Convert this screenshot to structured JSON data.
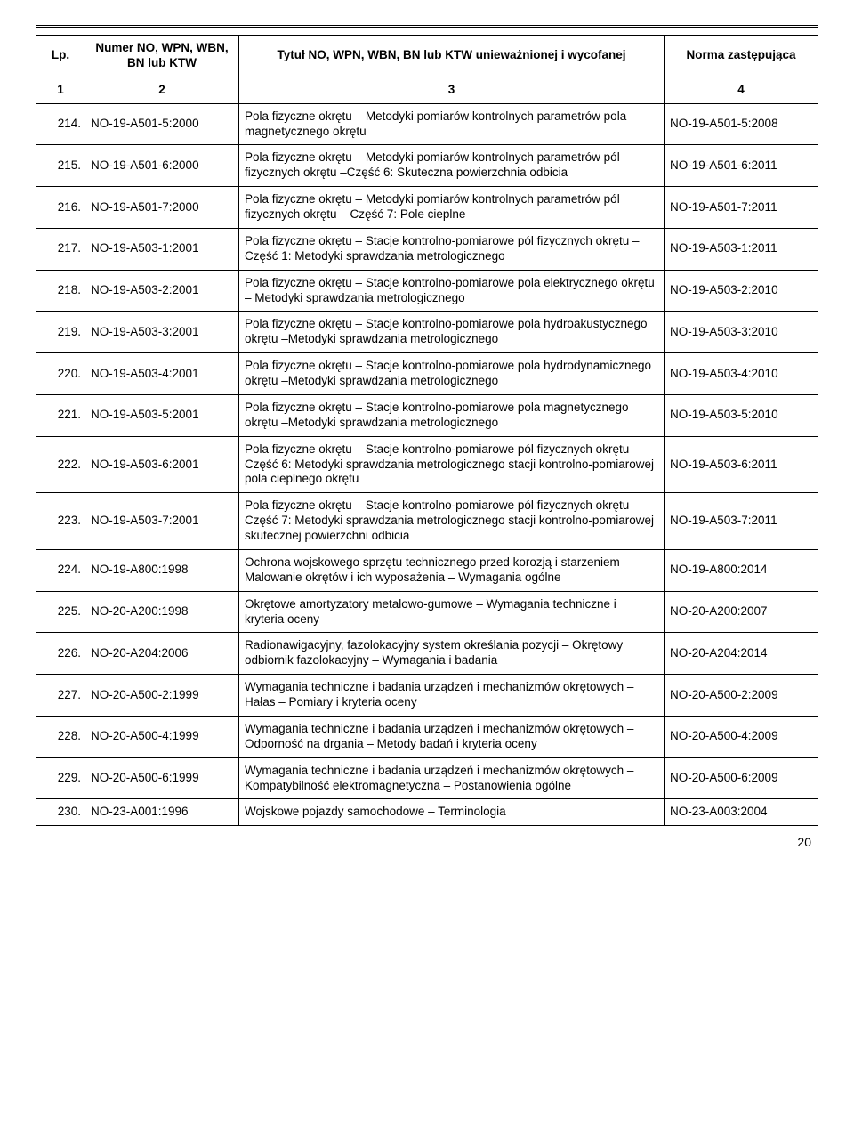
{
  "page_number": "20",
  "table": {
    "headers": {
      "lp": "Lp.",
      "num": "Numer\nNO, WPN, WBN, BN lub KTW",
      "title": "Tytuł NO, WPN, WBN, BN lub KTW unieważnionej i wycofanej",
      "rep": "Norma zastępująca"
    },
    "sub_headers": {
      "c1": "1",
      "c2": "2",
      "c3": "3",
      "c4": "4"
    },
    "rows": [
      {
        "lp": "214.",
        "num": "NO-19-A501-5:2000",
        "title": "Pola fizyczne okrętu – Metodyki pomiarów kontrolnych parametrów pola magnetycznego okrętu",
        "rep": "NO-19-A501-5:2008"
      },
      {
        "lp": "215.",
        "num": "NO-19-A501-6:2000",
        "title": "Pola fizyczne okrętu – Metodyki pomiarów kontrolnych parametrów pól fizycznych okrętu –Część 6: Skuteczna powierzchnia odbicia",
        "rep": "NO-19-A501-6:2011"
      },
      {
        "lp": "216.",
        "num": "NO-19-A501-7:2000",
        "title": "Pola fizyczne okrętu – Metodyki pomiarów kontrolnych parametrów pól fizycznych okrętu – Część 7: Pole cieplne",
        "rep": "NO-19-A501-7:2011"
      },
      {
        "lp": "217.",
        "num": "NO-19-A503-1:2001",
        "title": "Pola fizyczne okrętu – Stacje kontrolno-pomiarowe pól fizycznych okrętu – Część 1: Metodyki sprawdzania metrologicznego",
        "rep": "NO-19-A503-1:2011"
      },
      {
        "lp": "218.",
        "num": "NO-19-A503-2:2001",
        "title": "Pola fizyczne okrętu – Stacje kontrolno-pomiarowe pola elektrycznego okrętu –  Metodyki sprawdzania metrologicznego",
        "rep": "NO-19-A503-2:2010"
      },
      {
        "lp": "219.",
        "num": "NO-19-A503-3:2001",
        "title": "Pola fizyczne okrętu – Stacje kontrolno-pomiarowe pola hydroakustycznego okrętu –Metodyki sprawdzania metrologicznego",
        "rep": "NO-19-A503-3:2010"
      },
      {
        "lp": "220.",
        "num": "NO-19-A503-4:2001",
        "title": "Pola fizyczne okrętu – Stacje kontrolno-pomiarowe pola hydrodynamicznego okrętu –Metodyki sprawdzania metrologicznego",
        "rep": "NO-19-A503-4:2010"
      },
      {
        "lp": "221.",
        "num": "NO-19-A503-5:2001",
        "title": "Pola fizyczne okrętu – Stacje kontrolno-pomiarowe pola magnetycznego okrętu –Metodyki sprawdzania metrologicznego",
        "rep": "NO-19-A503-5:2010"
      },
      {
        "lp": "222.",
        "num": "NO-19-A503-6:2001",
        "title": "Pola fizyczne okrętu – Stacje kontrolno-pomiarowe pól fizycznych okrętu – Część 6: Metodyki sprawdzania metrologicznego stacji kontrolno-pomiarowej pola cieplnego okrętu",
        "rep": "NO-19-A503-6:2011"
      },
      {
        "lp": "223.",
        "num": "NO-19-A503-7:2001",
        "title": "Pola fizyczne okrętu – Stacje kontrolno-pomiarowe pól fizycznych okrętu – Część 7: Metodyki sprawdzania metrologicznego stacji kontrolno-pomiarowej skutecznej powierzchni odbicia",
        "rep": "NO-19-A503-7:2011"
      },
      {
        "lp": "224.",
        "num": "NO-19-A800:1998",
        "title": "Ochrona wojskowego sprzętu technicznego przed korozją i starzeniem – Malowanie okrętów i ich wyposażenia – Wymagania ogólne",
        "rep": "NO-19-A800:2014"
      },
      {
        "lp": "225.",
        "num": "NO-20-A200:1998",
        "title": "Okrętowe amortyzatory metalowo-gumowe – Wymagania techniczne i kryteria oceny",
        "rep": "NO-20-A200:2007"
      },
      {
        "lp": "226.",
        "num": "NO-20-A204:2006",
        "title": "Radionawigacyjny, fazolokacyjny system określania pozycji – Okrętowy odbiornik fazolokacyjny – Wymagania i badania",
        "rep": "NO-20-A204:2014"
      },
      {
        "lp": "227.",
        "num": "NO-20-A500-2:1999",
        "title": "Wymagania techniczne i badania urządzeń i mechanizmów okrętowych – Hałas – Pomiary i kryteria oceny",
        "rep": "NO-20-A500-2:2009"
      },
      {
        "lp": "228.",
        "num": "NO-20-A500-4:1999",
        "title": "Wymagania techniczne i badania urządzeń i mechanizmów okrętowych – Odporność na drgania – Metody badań i kryteria oceny",
        "rep": "NO-20-A500-4:2009"
      },
      {
        "lp": "229.",
        "num": "NO-20-A500-6:1999",
        "title": "Wymagania techniczne i badania urządzeń i mechanizmów  okrętowych – Kompatybilność elektromagnetyczna – Postanowienia ogólne",
        "rep": "NO-20-A500-6:2009"
      },
      {
        "lp": "230.",
        "num": "NO-23-A001:1996",
        "title": "Wojskowe pojazdy samochodowe – Terminologia",
        "rep": "NO-23-A003:2004"
      }
    ]
  }
}
